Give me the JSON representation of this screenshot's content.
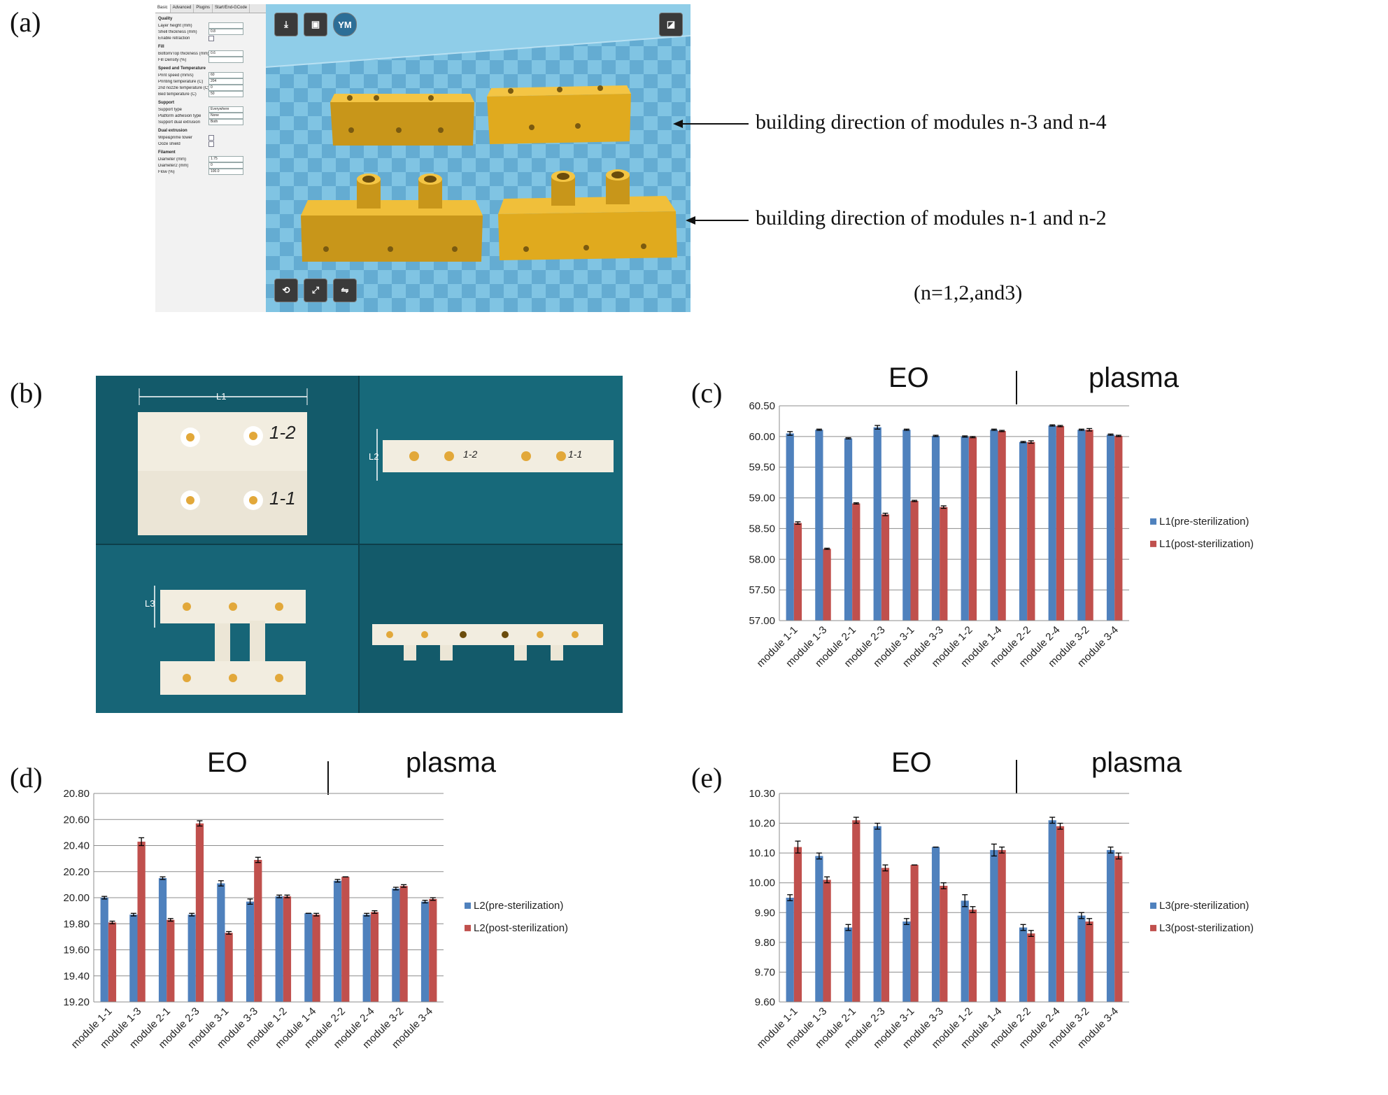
{
  "panels": {
    "a": {
      "letter": "(a)",
      "settings": {
        "tabs": [
          "Basic",
          "Advanced",
          "Plugins",
          "Start/End-GCode"
        ],
        "sections": [
          {
            "title": "Quality",
            "rows": [
              {
                "label": "Layer height (mm)",
                "value": ""
              },
              {
                "label": "Shell thickness (mm)",
                "value": "0.8"
              },
              {
                "label": "Enable retraction",
                "value": "checkbox"
              }
            ]
          },
          {
            "title": "Fill",
            "rows": [
              {
                "label": "Bottom/Top thickness (mm)",
                "value": "0.6"
              },
              {
                "label": "Fill Density (%)",
                "value": ""
              }
            ]
          },
          {
            "title": "Speed and Temperature",
            "rows": [
              {
                "label": "Print speed (mm/s)",
                "value": "60"
              },
              {
                "label": "Printing temperature (C)",
                "value": "204"
              },
              {
                "label": "2nd nozzle temperature (C)",
                "value": "0"
              },
              {
                "label": "Bed temperature (C)",
                "value": "50"
              }
            ]
          },
          {
            "title": "Support",
            "rows": [
              {
                "label": "Support type",
                "value": "Everywhere"
              },
              {
                "label": "Platform adhesion type",
                "value": "None"
              },
              {
                "label": "Support dual extrusion",
                "value": "Both"
              }
            ]
          },
          {
            "title": "Dual extrusion",
            "rows": [
              {
                "label": "Wipe&prime tower",
                "value": "checkbox"
              },
              {
                "label": "Ooze shield",
                "value": "checkbox"
              }
            ]
          },
          {
            "title": "Filament",
            "rows": [
              {
                "label": "Diameter (mm)",
                "value": "1.75"
              },
              {
                "label": "Diameter2 (mm)",
                "value": "0"
              },
              {
                "label": "Flow (%)",
                "value": "100.0"
              }
            ]
          }
        ]
      },
      "toolbar": {
        "ym_label": "YM"
      },
      "annotations": {
        "top": "building direction of modules n-3 and n-4",
        "bottom": "building direction of modules n-1 and n-2",
        "note": "(n=1,2,and3)"
      },
      "colors": {
        "viewport": "#7ec3e2",
        "module": "#e0aa1e"
      }
    },
    "b": {
      "letter": "(b)",
      "dims": {
        "l1": "L1",
        "l2": "L2",
        "l3": "L3"
      },
      "marks": {
        "m12": "1-2",
        "m11": "1-1"
      },
      "colors": {
        "background": "#135a6a",
        "part": "#f2ede0"
      }
    },
    "c": {
      "letter": "(c)",
      "group_left": "EO",
      "group_right": "plasma"
    },
    "d": {
      "letter": "(d)",
      "group_left": "EO",
      "group_right": "plasma"
    },
    "e": {
      "letter": "(e)",
      "group_left": "EO",
      "group_right": "plasma"
    }
  },
  "colors": {
    "pre": "#4f81bd",
    "post": "#c0504d"
  },
  "chart_data": [
    {
      "panel": "c",
      "type": "bar",
      "categories": [
        "module 1-1",
        "module 1-3",
        "module 2-1",
        "module 2-3",
        "module 3-1",
        "module 3-3",
        "module 1-2",
        "module 1-4",
        "module 2-2",
        "module 2-4",
        "module 3-2",
        "module 3-4"
      ],
      "series": [
        {
          "name": "L1(pre-sterilization)",
          "values": [
            60.05,
            60.11,
            59.97,
            60.15,
            60.11,
            60.01,
            60.0,
            60.11,
            59.91,
            60.18,
            60.11,
            60.03
          ],
          "errors": [
            0.03,
            0.01,
            0.01,
            0.03,
            0.01,
            0.01,
            0.01,
            0.01,
            0.01,
            0.01,
            0.01,
            0.01
          ]
        },
        {
          "name": "L1(post-sterilization)",
          "values": [
            58.59,
            58.17,
            58.91,
            58.73,
            58.95,
            58.85,
            59.99,
            60.09,
            59.91,
            60.17,
            60.11,
            60.01
          ],
          "errors": [
            0.02,
            0.01,
            0.01,
            0.02,
            0.01,
            0.02,
            0.01,
            0.01,
            0.02,
            0.01,
            0.02,
            0.01
          ]
        }
      ],
      "yticks": [
        "57.00",
        "57.50",
        "58.00",
        "58.50",
        "59.00",
        "59.50",
        "60.00",
        "60.50"
      ],
      "ylim": [
        57.0,
        60.5
      ],
      "grid": true,
      "legend": "right"
    },
    {
      "panel": "d",
      "type": "bar",
      "categories": [
        "module 1-1",
        "module 1-3",
        "module 2-1",
        "module 2-3",
        "module 3-1",
        "module 3-3",
        "module 1-2",
        "module 1-4",
        "module 2-2",
        "module 2-4",
        "module 3-2",
        "module 3-4"
      ],
      "series": [
        {
          "name": "L2(pre-sterilization)",
          "values": [
            20.0,
            19.87,
            20.15,
            19.87,
            20.11,
            19.97,
            20.01,
            19.88,
            20.13,
            19.87,
            20.07,
            19.97
          ],
          "errors": [
            0.01,
            0.01,
            0.01,
            0.01,
            0.02,
            0.02,
            0.01,
            0.0,
            0.01,
            0.01,
            0.01,
            0.01
          ]
        },
        {
          "name": "L2(post-sterilization)",
          "values": [
            19.81,
            20.43,
            19.83,
            20.57,
            19.73,
            20.29,
            20.01,
            19.87,
            20.16,
            19.89,
            20.09,
            19.99
          ],
          "errors": [
            0.01,
            0.03,
            0.01,
            0.02,
            0.01,
            0.02,
            0.01,
            0.01,
            0.0,
            0.01,
            0.01,
            0.01
          ]
        }
      ],
      "yticks": [
        "19.20",
        "19.40",
        "19.60",
        "19.80",
        "20.00",
        "20.20",
        "20.40",
        "20.60",
        "20.80"
      ],
      "ylim": [
        19.2,
        20.8
      ],
      "grid": true,
      "legend": "right"
    },
    {
      "panel": "e",
      "type": "bar",
      "categories": [
        "module 1-1",
        "module 1-3",
        "module 2-1",
        "module 2-3",
        "module 3-1",
        "module 3-3",
        "module 1-2",
        "module 1-4",
        "module 2-2",
        "module 2-4",
        "module 3-2",
        "module 3-4"
      ],
      "series": [
        {
          "name": "L3(pre-sterilization)",
          "values": [
            9.95,
            10.09,
            9.85,
            10.19,
            9.87,
            10.12,
            9.94,
            10.11,
            9.85,
            10.21,
            9.89,
            10.11
          ],
          "errors": [
            0.01,
            0.01,
            0.01,
            0.01,
            0.01,
            0.0,
            0.02,
            0.02,
            0.01,
            0.01,
            0.01,
            0.01
          ]
        },
        {
          "name": "L3(post-sterilization)",
          "values": [
            10.12,
            10.01,
            10.21,
            10.05,
            10.06,
            9.99,
            9.91,
            10.11,
            9.83,
            10.19,
            9.87,
            10.09
          ],
          "errors": [
            0.02,
            0.01,
            0.01,
            0.01,
            0.0,
            0.01,
            0.01,
            0.01,
            0.01,
            0.01,
            0.01,
            0.01
          ]
        }
      ],
      "yticks": [
        "9.60",
        "9.70",
        "9.80",
        "9.90",
        "10.00",
        "10.10",
        "10.20",
        "10.30"
      ],
      "ylim": [
        9.6,
        10.3
      ],
      "grid": true,
      "legend": "right"
    }
  ]
}
